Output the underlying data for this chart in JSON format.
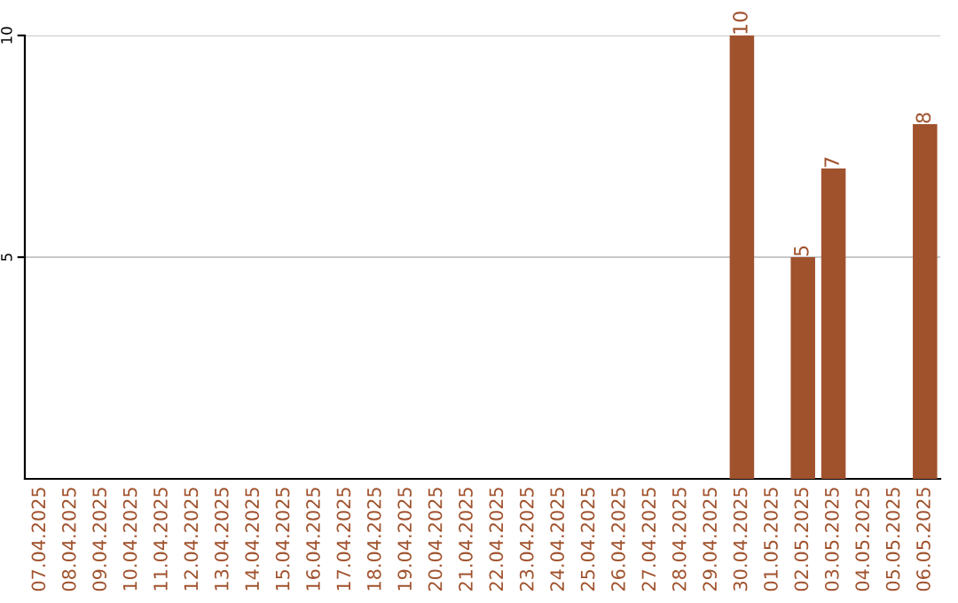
{
  "chart_data": {
    "type": "bar",
    "categories": [
      "07.04.2025",
      "08.04.2025",
      "09.04.2025",
      "10.04.2025",
      "11.04.2025",
      "12.04.2025",
      "13.04.2025",
      "14.04.2025",
      "15.04.2025",
      "16.04.2025",
      "17.04.2025",
      "18.04.2025",
      "19.04.2025",
      "20.04.2025",
      "21.04.2025",
      "22.04.2025",
      "23.04.2025",
      "24.04.2025",
      "25.04.2025",
      "26.04.2025",
      "27.04.2025",
      "28.04.2025",
      "29.04.2025",
      "30.04.2025",
      "01.05.2025",
      "02.05.2025",
      "03.05.2025",
      "04.05.2025",
      "05.05.2025",
      "06.05.2025"
    ],
    "values": [
      null,
      null,
      null,
      null,
      null,
      null,
      null,
      null,
      null,
      null,
      null,
      null,
      null,
      null,
      null,
      null,
      null,
      null,
      null,
      null,
      null,
      null,
      null,
      10,
      null,
      5,
      7,
      null,
      null,
      8
    ],
    "value_labels": [
      null,
      null,
      null,
      null,
      null,
      null,
      null,
      null,
      null,
      null,
      null,
      null,
      null,
      null,
      null,
      null,
      null,
      null,
      null,
      null,
      null,
      null,
      null,
      "10",
      null,
      "5",
      "7",
      null,
      null,
      "8"
    ],
    "color": "#a0522d",
    "ylim": [
      0,
      10
    ],
    "yticks": [
      5,
      10
    ],
    "grid": "y",
    "legend": false
  }
}
